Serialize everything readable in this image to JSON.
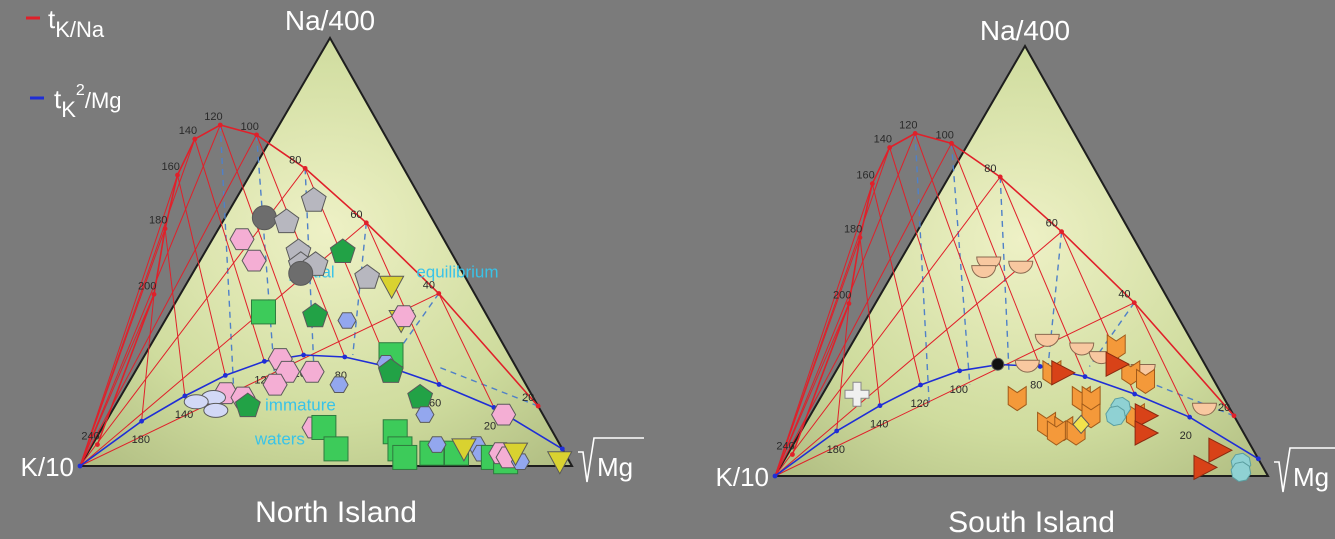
{
  "legend": [
    {
      "sub": "K/Na",
      "sup": "",
      "tail": "",
      "color": "#e0202a"
    },
    {
      "sub": "K",
      "sup": "2",
      "tail": "/Mg",
      "color": "#1f2ed6"
    }
  ],
  "legend_prefix": "t",
  "colors": {
    "tkna": "#e0202a",
    "tkmg": "#1f2ed6",
    "dashed": "#4f80c8"
  },
  "chart_data": [
    {
      "type": "scatter",
      "ternary": true,
      "title": "North Island",
      "apex_top": "Na/400",
      "apex_left": "K/10",
      "apex_right": "√Mg",
      "apex_right_text": "Mg",
      "tkna_ticks": [
        "240",
        "200",
        "180",
        "160",
        "140",
        "120",
        "100",
        "80",
        "60",
        "40",
        "20"
      ],
      "tkmg_ticks": [
        "180",
        "140",
        "120",
        "100",
        "80",
        "60",
        "20"
      ],
      "annotations": [
        {
          "text": "partial",
          "a": 0.44,
          "b": 0.36
        },
        {
          "text": "equilibrium",
          "a": 0.44,
          "b": 0.1
        },
        {
          "text": "immature",
          "a": 0.13,
          "b": 0.56
        },
        {
          "text": "waters",
          "a": 0.05,
          "b": 0.62
        }
      ],
      "points": [
        {
          "shape": "circle",
          "color": "#6d6d6d",
          "a": 0.58,
          "b": 0.34
        },
        {
          "shape": "pentagon",
          "color": "#b7b7bf",
          "a": 0.57,
          "b": 0.3
        },
        {
          "shape": "pentagon",
          "color": "#b7b7bf",
          "a": 0.62,
          "b": 0.22
        },
        {
          "shape": "pentagon",
          "color": "#b7b7bf",
          "a": 0.5,
          "b": 0.31
        },
        {
          "shape": "pentagon",
          "color": "#b7b7bf",
          "a": 0.47,
          "b": 0.32
        },
        {
          "shape": "pentagon",
          "color": "#b7b7bf",
          "a": 0.47,
          "b": 0.29
        },
        {
          "shape": "circle",
          "color": "#6d6d6d",
          "a": 0.45,
          "b": 0.33
        },
        {
          "shape": "pentagon",
          "color": "#22a246",
          "a": 0.5,
          "b": 0.22
        },
        {
          "shape": "pentagon",
          "color": "#b7b7bf",
          "a": 0.44,
          "b": 0.2
        },
        {
          "shape": "triangle",
          "color": "#d9d230",
          "a": 0.42,
          "b": 0.16
        },
        {
          "shape": "triangle",
          "color": "#d9d230",
          "a": 0.34,
          "b": 0.18
        },
        {
          "shape": "hexagon",
          "color": "#f4aed4",
          "a": 0.53,
          "b": 0.41
        },
        {
          "shape": "hexagon",
          "color": "#f4aed4",
          "a": 0.48,
          "b": 0.41
        },
        {
          "shape": "square",
          "color": "#3dcb5a",
          "a": 0.36,
          "b": 0.45
        },
        {
          "shape": "pentagon",
          "color": "#22a246",
          "a": 0.35,
          "b": 0.35
        },
        {
          "shape": "hexagon",
          "color": "#93a7ee",
          "a": 0.34,
          "b": 0.29
        },
        {
          "shape": "hexagon",
          "color": "#f4aed4",
          "a": 0.35,
          "b": 0.17
        },
        {
          "shape": "hexagon",
          "color": "#f4aed4",
          "a": 0.25,
          "b": 0.47
        },
        {
          "shape": "hexagon",
          "color": "#f4aed4",
          "a": 0.22,
          "b": 0.42
        },
        {
          "shape": "hexagon",
          "color": "#f4aed4",
          "a": 0.22,
          "b": 0.47
        },
        {
          "shape": "square",
          "color": "#3dcb5a",
          "a": 0.26,
          "b": 0.24
        },
        {
          "shape": "hexagon",
          "color": "#93a7ee",
          "a": 0.24,
          "b": 0.26
        },
        {
          "shape": "pentagon",
          "color": "#22a246",
          "a": 0.22,
          "b": 0.26
        },
        {
          "shape": "hexagon",
          "color": "#93a7ee",
          "a": 0.19,
          "b": 0.38
        },
        {
          "shape": "hexagon",
          "color": "#f4aed4",
          "a": 0.19,
          "b": 0.51
        },
        {
          "shape": "hexagon",
          "color": "#f4aed4",
          "a": 0.17,
          "b": 0.62
        },
        {
          "shape": "hexagon",
          "color": "#f4aed4",
          "a": 0.16,
          "b": 0.59
        },
        {
          "shape": "ellipse",
          "color": "#d2d8f6",
          "a": 0.16,
          "b": 0.65
        },
        {
          "shape": "ellipse",
          "color": "#d2d8f6",
          "a": 0.13,
          "b": 0.66
        },
        {
          "shape": "ellipse",
          "color": "#d2d8f6",
          "a": 0.15,
          "b": 0.69
        },
        {
          "shape": "pentagon",
          "color": "#22a246",
          "a": 0.14,
          "b": 0.59
        },
        {
          "shape": "pentagon",
          "color": "#22a246",
          "a": 0.16,
          "b": 0.23
        },
        {
          "shape": "hexagon",
          "color": "#93a7ee",
          "a": 0.12,
          "b": 0.24
        },
        {
          "shape": "hexagon",
          "color": "#f4aed4",
          "a": 0.12,
          "b": 0.08
        },
        {
          "shape": "hexagon",
          "color": "#f4aed4",
          "a": 0.09,
          "b": 0.48
        },
        {
          "shape": "square",
          "color": "#3dcb5a",
          "a": 0.09,
          "b": 0.46
        },
        {
          "shape": "square",
          "color": "#3dcb5a",
          "a": 0.08,
          "b": 0.32
        },
        {
          "shape": "square",
          "color": "#3dcb5a",
          "a": 0.04,
          "b": 0.46
        },
        {
          "shape": "square",
          "color": "#3dcb5a",
          "a": 0.04,
          "b": 0.33
        },
        {
          "shape": "square",
          "color": "#3dcb5a",
          "a": 0.02,
          "b": 0.33
        },
        {
          "shape": "square",
          "color": "#3dcb5a",
          "a": 0.03,
          "b": 0.27
        },
        {
          "shape": "square",
          "color": "#3dcb5a",
          "a": 0.03,
          "b": 0.22
        },
        {
          "shape": "hexagon",
          "color": "#93a7ee",
          "a": 0.05,
          "b": 0.25
        },
        {
          "shape": "hexagon",
          "color": "#93a7ee",
          "a": 0.05,
          "b": 0.17
        },
        {
          "shape": "hexagon",
          "color": "#93a7ee",
          "a": 0.03,
          "b": 0.17
        },
        {
          "shape": "square",
          "color": "#3dcb5a",
          "a": 0.02,
          "b": 0.15
        },
        {
          "shape": "square",
          "color": "#3dcb5a",
          "a": 0.01,
          "b": 0.13
        },
        {
          "shape": "hexagon",
          "color": "#f4aed4",
          "a": 0.03,
          "b": 0.13
        },
        {
          "shape": "hexagon",
          "color": "#f4aed4",
          "a": 0.02,
          "b": 0.12
        },
        {
          "shape": "hexagon",
          "color": "#93a7ee",
          "a": 0.01,
          "b": 0.1
        },
        {
          "shape": "triangle",
          "color": "#d9d230",
          "a": 0.04,
          "b": 0.2
        },
        {
          "shape": "triangle",
          "color": "#d9d230",
          "a": 0.03,
          "b": 0.1
        },
        {
          "shape": "triangle",
          "color": "#d9d230",
          "a": 0.01,
          "b": 0.02
        }
      ]
    },
    {
      "type": "scatter",
      "ternary": true,
      "title": "South Island",
      "apex_top": "Na/400",
      "apex_left": "K/10",
      "apex_right": "√Mg",
      "apex_right_text": "Mg",
      "tkna_ticks": [
        "240",
        "200",
        "180",
        "160",
        "140",
        "120",
        "100",
        "80",
        "60",
        "40",
        "20"
      ],
      "tkmg_ticks": [
        "180",
        "140",
        "120",
        "100",
        "80",
        "60",
        "40",
        "20"
      ],
      "annotations": [],
      "points": [
        {
          "shape": "semicircle",
          "color": "#f8c8a0",
          "a": 0.5,
          "b": 0.32
        },
        {
          "shape": "semicircle",
          "color": "#f8c8a0",
          "a": 0.48,
          "b": 0.34
        },
        {
          "shape": "semicircle",
          "color": "#f8c8a0",
          "a": 0.49,
          "b": 0.26
        },
        {
          "shape": "semicircle",
          "color": "#f8c8a0",
          "a": 0.32,
          "b": 0.29
        },
        {
          "shape": "semicircle",
          "color": "#f8c8a0",
          "a": 0.3,
          "b": 0.23
        },
        {
          "shape": "semicircle",
          "color": "#f8c8a0",
          "a": 0.28,
          "b": 0.2
        },
        {
          "shape": "semicircle",
          "color": "#f8c8a0",
          "a": 0.26,
          "b": 0.36
        },
        {
          "shape": "semicircle",
          "color": "#f8c8a0",
          "a": 0.25,
          "b": 0.13
        },
        {
          "shape": "semicircle",
          "color": "#f8c8a0",
          "a": 0.16,
          "b": 0.05
        },
        {
          "shape": "chevron",
          "color": "#f4993a",
          "a": 0.3,
          "b": 0.16
        },
        {
          "shape": "chevron",
          "color": "#f4993a",
          "a": 0.24,
          "b": 0.32
        },
        {
          "shape": "chevron",
          "color": "#f4993a",
          "a": 0.24,
          "b": 0.16
        },
        {
          "shape": "chevron",
          "color": "#f4993a",
          "a": 0.22,
          "b": 0.14
        },
        {
          "shape": "chevron",
          "color": "#f4993a",
          "a": 0.18,
          "b": 0.42
        },
        {
          "shape": "chevron",
          "color": "#f4993a",
          "a": 0.18,
          "b": 0.29
        },
        {
          "shape": "chevron",
          "color": "#f4993a",
          "a": 0.18,
          "b": 0.27
        },
        {
          "shape": "chevron",
          "color": "#f4993a",
          "a": 0.14,
          "b": 0.29
        },
        {
          "shape": "chevron",
          "color": "#f4993a",
          "a": 0.14,
          "b": 0.2
        },
        {
          "shape": "chevron",
          "color": "#f4993a",
          "a": 0.12,
          "b": 0.39
        },
        {
          "shape": "chevron",
          "color": "#f4993a",
          "a": 0.11,
          "b": 0.36
        },
        {
          "shape": "chevron",
          "color": "#f4993a",
          "a": 0.1,
          "b": 0.38
        },
        {
          "shape": "chevron",
          "color": "#f4993a",
          "a": 0.1,
          "b": 0.34
        },
        {
          "shape": "triangle-right",
          "color": "#d84218",
          "a": 0.26,
          "b": 0.18
        },
        {
          "shape": "triangle-right",
          "color": "#d84218",
          "a": 0.24,
          "b": 0.3
        },
        {
          "shape": "triangle-right",
          "color": "#d84218",
          "a": 0.14,
          "b": 0.18
        },
        {
          "shape": "triangle-right",
          "color": "#d84218",
          "a": 0.1,
          "b": 0.2
        },
        {
          "shape": "triangle-right",
          "color": "#d84218",
          "a": 0.06,
          "b": 0.07
        },
        {
          "shape": "triangle-right",
          "color": "#d84218",
          "a": 0.02,
          "b": 0.12
        },
        {
          "shape": "diamond",
          "color": "#f2e24c",
          "a": 0.12,
          "b": 0.32
        },
        {
          "shape": "circle",
          "color": "#111111",
          "a": 0.26,
          "b": 0.42
        },
        {
          "shape": "cross",
          "color": "#f0f0f0",
          "a": 0.19,
          "b": 0.74
        },
        {
          "shape": "blob",
          "color": "#8fd1d3",
          "a": 0.16,
          "b": 0.22
        },
        {
          "shape": "blob",
          "color": "#8fd1d3",
          "a": 0.14,
          "b": 0.24
        },
        {
          "shape": "blob",
          "color": "#8fd1d3",
          "a": 0.03,
          "b": 0.04
        },
        {
          "shape": "blob",
          "color": "#8fd1d3",
          "a": 0.01,
          "b": 0.05
        }
      ]
    }
  ]
}
